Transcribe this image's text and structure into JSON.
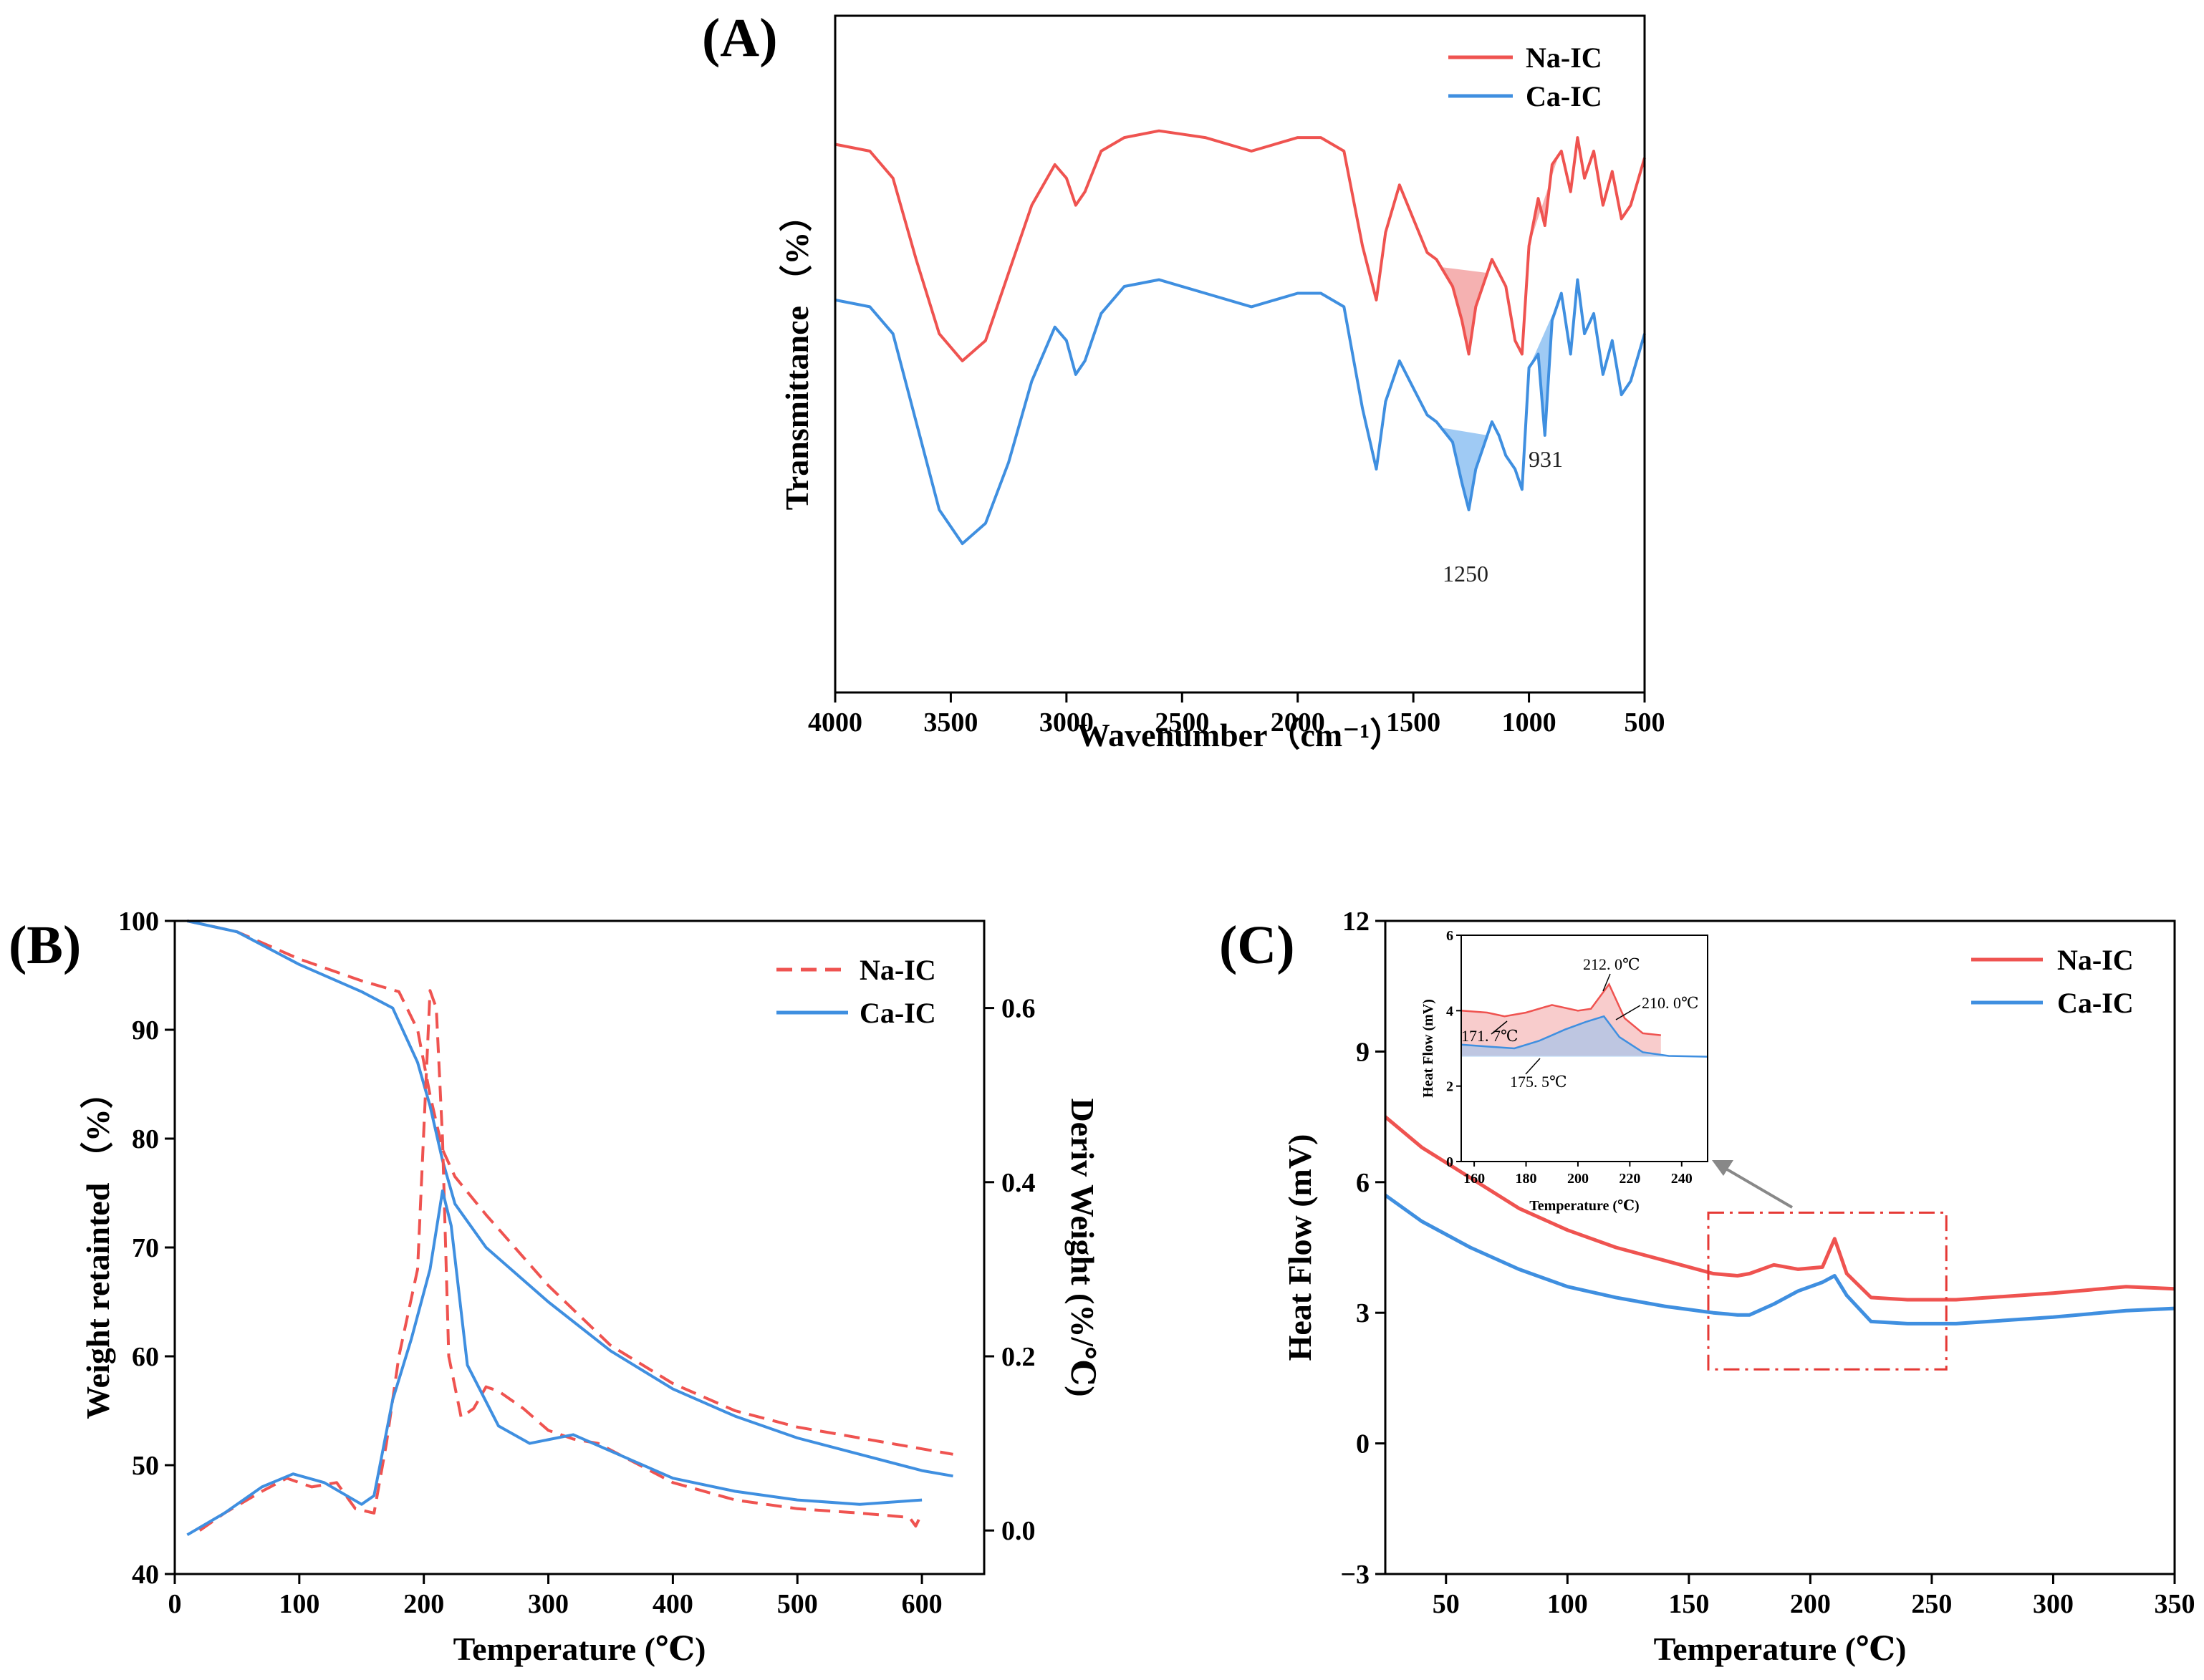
{
  "colors": {
    "na": "#ef5350",
    "ca": "#3f8fe0",
    "na_fill": "#f3a3a3",
    "ca_fill": "#8ec1f2",
    "zoom_box": "#e53935",
    "arrow": "#888888"
  },
  "chart_data": [
    {
      "id": "A",
      "panel_label": "(A)",
      "type": "line",
      "title": "",
      "xlabel": "Wavenumber（cm⁻¹）",
      "ylabel": "Transmittance （%）",
      "xlim": [
        4000,
        500
      ],
      "ylim": [
        0,
        100
      ],
      "xticks": [
        4000,
        3500,
        3000,
        2500,
        2000,
        1500,
        1000,
        500
      ],
      "y_ticks_shown": false,
      "legend": {
        "placement": "top-right",
        "entries": [
          "Na-IC",
          "Ca-IC"
        ]
      },
      "series": [
        {
          "name": "Na-IC",
          "x": [
            4000,
            3850,
            3750,
            3650,
            3550,
            3450,
            3350,
            3250,
            3150,
            3050,
            3000,
            2960,
            2920,
            2850,
            2750,
            2600,
            2400,
            2200,
            2000,
            1900,
            1800,
            1720,
            1660,
            1620,
            1560,
            1500,
            1440,
            1400,
            1330,
            1290,
            1260,
            1230,
            1160,
            1130,
            1100,
            1060,
            1030,
            1000,
            960,
            931,
            900,
            860,
            820,
            790,
            760,
            720,
            680,
            640,
            600,
            560,
            500
          ],
          "y": [
            81,
            80,
            76,
            64,
            53,
            49,
            52,
            62,
            72,
            78,
            76,
            72,
            74,
            80,
            82,
            83,
            82,
            80,
            82,
            82,
            80,
            66,
            58,
            68,
            75,
            70,
            65,
            64,
            60,
            55,
            50,
            57,
            64,
            62,
            60,
            52,
            50,
            66,
            73,
            69,
            78,
            80,
            74,
            82,
            76,
            80,
            72,
            77,
            70,
            72,
            79
          ]
        },
        {
          "name": "Ca-IC",
          "x": [
            4000,
            3850,
            3750,
            3650,
            3550,
            3450,
            3350,
            3250,
            3150,
            3050,
            3000,
            2960,
            2920,
            2850,
            2750,
            2600,
            2400,
            2200,
            2000,
            1900,
            1800,
            1720,
            1660,
            1620,
            1560,
            1500,
            1440,
            1400,
            1330,
            1290,
            1260,
            1230,
            1160,
            1130,
            1100,
            1060,
            1030,
            1000,
            960,
            931,
            900,
            860,
            820,
            790,
            760,
            720,
            680,
            640,
            600,
            560,
            500
          ],
          "y": [
            58,
            57,
            53,
            40,
            27,
            22,
            25,
            34,
            46,
            54,
            52,
            47,
            49,
            56,
            60,
            61,
            59,
            57,
            59,
            59,
            57,
            42,
            33,
            43,
            49,
            45,
            41,
            40,
            37,
            31,
            27,
            33,
            40,
            38,
            35,
            33,
            30,
            48,
            50,
            38,
            55,
            59,
            50,
            61,
            53,
            56,
            47,
            52,
            44,
            46,
            53
          ]
        }
      ],
      "shaded_regions": [
        {
          "series": "Na-IC",
          "from": 1380,
          "to": 1180
        },
        {
          "series": "Na-IC",
          "from": 1000,
          "to": 870
        },
        {
          "series": "Ca-IC",
          "from": 1380,
          "to": 1180
        },
        {
          "series": "Ca-IC",
          "from": 1000,
          "to": 870
        }
      ],
      "annotations": [
        {
          "text": "931",
          "x": 931,
          "series": "Ca-IC"
        },
        {
          "text": "1250",
          "x": 1250,
          "series": "Ca-IC"
        }
      ]
    },
    {
      "id": "B",
      "panel_label": "(B)",
      "type": "line",
      "title": "",
      "xlabel": "Temperature (℃)",
      "ylabel": "Weight retainted （%）",
      "y2label": "Deriv Weight (%/℃)",
      "xlim": [
        0,
        650
      ],
      "ylim": [
        40,
        100
      ],
      "y2lim": [
        -0.05,
        0.7
      ],
      "xticks": [
        0,
        100,
        200,
        300,
        400,
        500,
        600
      ],
      "yticks": [
        40,
        50,
        60,
        70,
        80,
        90,
        100
      ],
      "y2ticks": [
        "0.0",
        "0.2",
        "0.4",
        "0.6"
      ],
      "legend": {
        "placement": "top-right",
        "entries": [
          "Na-IC",
          "Ca-IC"
        ]
      },
      "series": [
        {
          "name": "Na-IC",
          "kind": "weight",
          "dashed": true,
          "x": [
            10,
            50,
            100,
            150,
            180,
            195,
            205,
            215,
            225,
            250,
            300,
            350,
            400,
            450,
            500,
            550,
            600,
            625
          ],
          "y": [
            100,
            99,
            96.5,
            94.5,
            93.5,
            90,
            84,
            79,
            76.5,
            73,
            66.5,
            61,
            57.5,
            55,
            53.5,
            52.5,
            51.5,
            51
          ]
        },
        {
          "name": "Ca-IC",
          "kind": "weight",
          "dashed": false,
          "x": [
            10,
            50,
            100,
            150,
            175,
            195,
            205,
            215,
            225,
            250,
            300,
            350,
            400,
            450,
            500,
            550,
            600,
            625
          ],
          "y": [
            100,
            99,
            96,
            93.5,
            92,
            87,
            83,
            78,
            74,
            70,
            65,
            60.5,
            57,
            54.5,
            52.5,
            51,
            49.5,
            49
          ]
        },
        {
          "name": "Na-IC",
          "kind": "deriv",
          "dashed": true,
          "x": [
            20,
            40,
            70,
            90,
            110,
            130,
            145,
            160,
            170,
            180,
            195,
            205,
            210,
            215,
            220,
            230,
            240,
            250,
            260,
            270,
            280,
            300,
            320,
            340,
            360,
            400,
            450,
            500,
            550,
            590,
            595,
            600
          ],
          "y": [
            0.0,
            0.02,
            0.045,
            0.06,
            0.05,
            0.055,
            0.025,
            0.02,
            0.1,
            0.2,
            0.3,
            0.62,
            0.6,
            0.45,
            0.2,
            0.13,
            0.14,
            0.165,
            0.16,
            0.15,
            0.14,
            0.115,
            0.105,
            0.1,
            0.085,
            0.055,
            0.035,
            0.025,
            0.02,
            0.015,
            0.005,
            0.02
          ]
        },
        {
          "name": "Ca-IC",
          "kind": "deriv",
          "dashed": false,
          "x": [
            10,
            40,
            70,
            95,
            120,
            150,
            160,
            175,
            190,
            205,
            215,
            222,
            235,
            260,
            285,
            320,
            360,
            400,
            450,
            500,
            550,
            600
          ],
          "y": [
            -0.005,
            0.02,
            0.05,
            0.065,
            0.055,
            0.03,
            0.04,
            0.15,
            0.22,
            0.3,
            0.39,
            0.35,
            0.19,
            0.12,
            0.1,
            0.11,
            0.085,
            0.06,
            0.045,
            0.035,
            0.03,
            0.035
          ]
        }
      ]
    },
    {
      "id": "C",
      "panel_label": "(C)",
      "type": "line",
      "title": "",
      "xlabel": "Temperature (℃)",
      "ylabel": "Heat Flow (mV)",
      "xlim": [
        25,
        350
      ],
      "ylim": [
        -3,
        12
      ],
      "xticks": [
        50,
        100,
        150,
        200,
        250,
        300,
        350
      ],
      "yticks": [
        -3,
        0,
        3,
        6,
        9,
        12
      ],
      "legend": {
        "placement": "top-right",
        "entries": [
          "Na-IC",
          "Ca-IC"
        ]
      },
      "series": [
        {
          "name": "Na-IC",
          "x": [
            25,
            40,
            60,
            80,
            100,
            120,
            140,
            160,
            170,
            175,
            185,
            195,
            205,
            210,
            215,
            225,
            240,
            260,
            300,
            330,
            350
          ],
          "y": [
            7.5,
            6.8,
            6.1,
            5.4,
            4.9,
            4.5,
            4.2,
            3.9,
            3.85,
            3.9,
            4.1,
            4.0,
            4.05,
            4.7,
            3.9,
            3.35,
            3.3,
            3.3,
            3.45,
            3.6,
            3.55
          ]
        },
        {
          "name": "Ca-IC",
          "x": [
            25,
            40,
            60,
            80,
            100,
            120,
            140,
            160,
            170,
            175,
            185,
            195,
            205,
            210,
            215,
            225,
            240,
            260,
            300,
            330,
            350
          ],
          "y": [
            5.7,
            5.1,
            4.5,
            4.0,
            3.6,
            3.35,
            3.15,
            3.0,
            2.95,
            2.95,
            3.2,
            3.5,
            3.7,
            3.85,
            3.4,
            2.8,
            2.75,
            2.75,
            2.9,
            3.05,
            3.1
          ]
        }
      ],
      "zoom_box": {
        "x": [
          158,
          256
        ],
        "y": [
          1.7,
          5.3
        ]
      },
      "inset": {
        "xlabel": "Temperature (℃)",
        "ylabel": "Heat Flow (mV)",
        "xlim": [
          155,
          250
        ],
        "ylim": [
          0,
          6
        ],
        "xticks": [
          160,
          180,
          200,
          220,
          240
        ],
        "yticks": [
          0,
          2,
          4,
          6
        ],
        "series": [
          {
            "name": "Na-IC",
            "x": [
              155,
              165,
              171.7,
              180,
              190,
              200,
              205,
              212,
              218,
              225,
              232
            ],
            "y": [
              4.0,
              3.95,
              3.85,
              3.95,
              4.15,
              4.0,
              4.05,
              4.7,
              3.8,
              3.4,
              3.35
            ]
          },
          {
            "name": "Ca-IC",
            "x": [
              155,
              165,
              175.5,
              185,
              195,
              203,
              210,
              216,
              225,
              235,
              250
            ],
            "y": [
              3.1,
              3.05,
              3.0,
              3.2,
              3.5,
              3.7,
              3.85,
              3.3,
              2.9,
              2.8,
              2.78
            ]
          }
        ],
        "annotations": [
          {
            "text": "212. 0℃",
            "series": "Na-IC"
          },
          {
            "text": "210. 0℃",
            "series": "Ca-IC"
          },
          {
            "text": "171. 7℃",
            "series": "Na-IC"
          },
          {
            "text": "175. 5℃",
            "series": "Ca-IC"
          }
        ]
      }
    }
  ]
}
